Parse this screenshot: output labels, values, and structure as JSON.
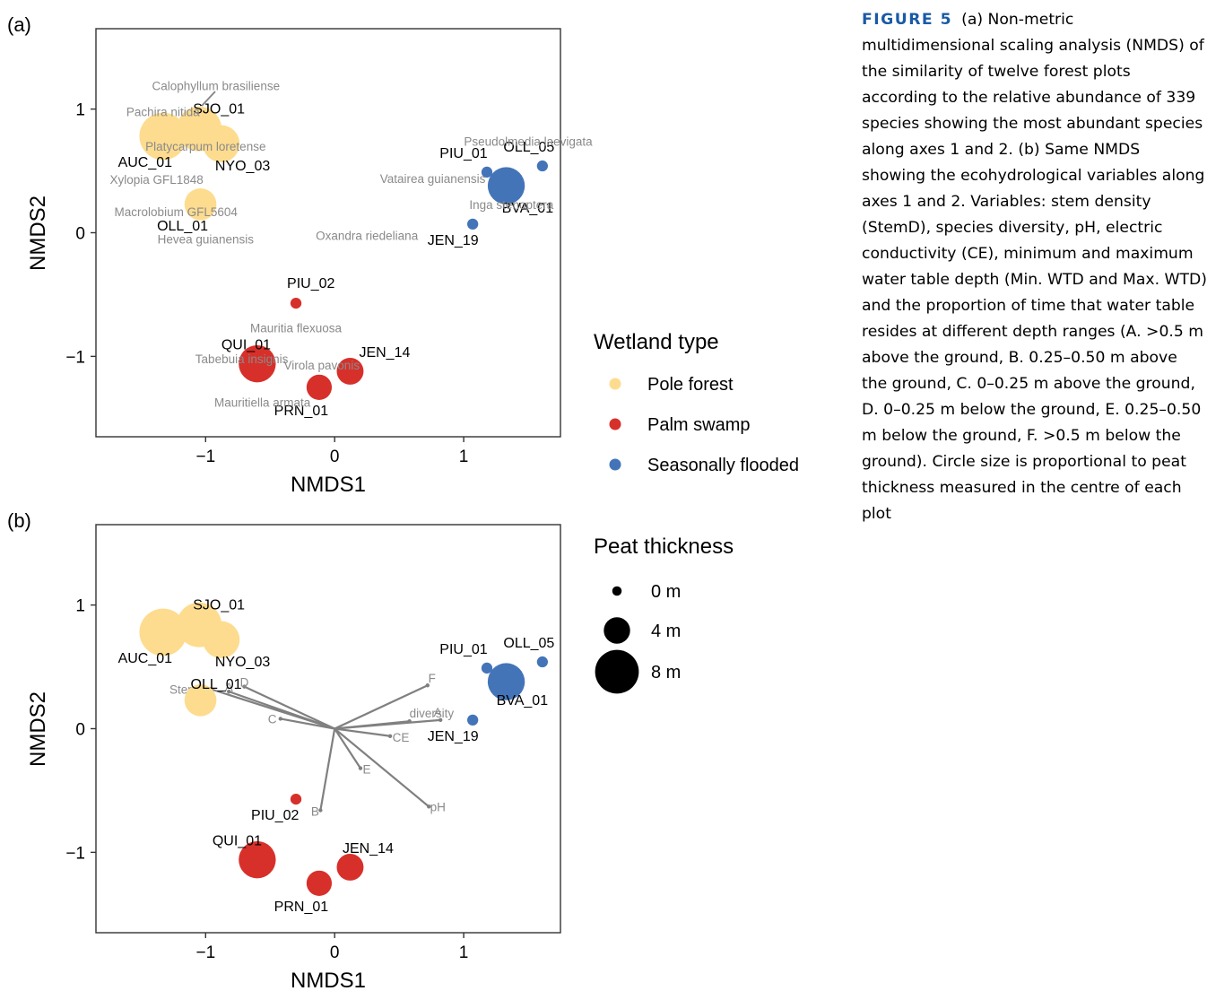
{
  "caption": {
    "figure_label": "FIGURE 5",
    "text": "(a) Non-metric multidimensional scaling analysis (NMDS) of the similarity of twelve forest plots according to the relative abundance of 339 species showing the most abundant species along axes 1 and 2. (b) Same NMDS showing the ecohydrological variables along axes 1 and 2. Variables: stem density (StemD), species diversity, pH, electric conductivity (CE), minimum and maximum water table depth (Min. WTD and Max. WTD) and the proportion of time that water table resides at different depth ranges (A. >0.5 m above the ground, B. 0.25–0.50 m above the ground, C. 0–0.25 m above the ground, D. 0–0.25 m below the ground, E. 0.25–0.50 m below the ground, F. >0.5 m below the ground). Circle size is proportional to peat thickness measured in the centre of each plot"
  },
  "legend": {
    "wetland_title": "Wetland type",
    "wetland_items": [
      {
        "label": "Pole forest",
        "color": "#fddc8f"
      },
      {
        "label": "Palm swamp",
        "color": "#d7302a"
      },
      {
        "label": "Seasonally flooded",
        "color": "#4474b8"
      }
    ],
    "peat_title": "Peat thickness",
    "peat_items": [
      {
        "label": "0 m",
        "value": 0
      },
      {
        "label": "4 m",
        "value": 4
      },
      {
        "label": "8 m",
        "value": 8
      }
    ]
  },
  "chart_data": [
    {
      "type": "scatter",
      "panel": "(a)",
      "xlabel": "NMDS1",
      "ylabel": "NMDS2",
      "xlim": [
        -1.85,
        1.75
      ],
      "ylim": [
        -1.65,
        1.65
      ],
      "xticks": [
        -1,
        0,
        1
      ],
      "yticks": [
        -1,
        0,
        1
      ],
      "grid": false,
      "plots": [
        {
          "label": "AUC_01",
          "x": -1.33,
          "y": 0.78,
          "type": "Pole forest",
          "peat": 7.5
        },
        {
          "label": "SJO_01",
          "x": -1.05,
          "y": 0.84,
          "type": "Pole forest",
          "peat": 7.0
        },
        {
          "label": "NYO_03",
          "x": -0.88,
          "y": 0.72,
          "type": "Pole forest",
          "peat": 5.5
        },
        {
          "label": "OLL_01",
          "x": -1.04,
          "y": 0.23,
          "type": "Pole forest",
          "peat": 4.5
        },
        {
          "label": "PIU_02",
          "x": -0.3,
          "y": -0.57,
          "type": "Palm swamp",
          "peat": 0.4
        },
        {
          "label": "QUI_01",
          "x": -0.6,
          "y": -1.06,
          "type": "Palm swamp",
          "peat": 5.5
        },
        {
          "label": "JEN_14",
          "x": 0.12,
          "y": -1.12,
          "type": "Palm swamp",
          "peat": 3.5
        },
        {
          "label": "PRN_01",
          "x": -0.12,
          "y": -1.25,
          "type": "Palm swamp",
          "peat": 3.2
        },
        {
          "label": "PIU_01",
          "x": 1.18,
          "y": 0.49,
          "type": "Seasonally flooded",
          "peat": 0.4
        },
        {
          "label": "OLL_05",
          "x": 1.61,
          "y": 0.54,
          "type": "Seasonally flooded",
          "peat": 0.4
        },
        {
          "label": "BVA_01",
          "x": 1.33,
          "y": 0.38,
          "type": "Seasonally flooded",
          "peat": 5.5
        },
        {
          "label": "JEN_19",
          "x": 1.07,
          "y": 0.07,
          "type": "Seasonally flooded",
          "peat": 0.4
        }
      ],
      "species": [
        {
          "label": "Calophyllum brasiliense",
          "x": -0.92,
          "y": 1.19
        },
        {
          "label": "Pachira nitida",
          "x": -1.33,
          "y": 0.98
        },
        {
          "label": "Platycarpum loretense",
          "x": -1.0,
          "y": 0.7
        },
        {
          "label": "Xylopia GFL1848",
          "x": -1.38,
          "y": 0.43
        },
        {
          "label": "Macrolobium GFL5604",
          "x": -1.23,
          "y": 0.17
        },
        {
          "label": "Hevea guianensis",
          "x": -1.0,
          "y": -0.05
        },
        {
          "label": "Pseudolmedia laevigata",
          "x": 1.5,
          "y": 0.74
        },
        {
          "label": "Vatairea guianensis",
          "x": 0.76,
          "y": 0.44
        },
        {
          "label": "Inga stenoptera",
          "x": 1.37,
          "y": 0.23
        },
        {
          "label": "Oxandra riedeliana",
          "x": 0.25,
          "y": -0.02
        },
        {
          "label": "Mauritia flexuosa",
          "x": -0.3,
          "y": -0.77
        },
        {
          "label": "Tabebuia insignis",
          "x": -0.72,
          "y": -1.02
        },
        {
          "label": "Virola pavonis",
          "x": -0.1,
          "y": -1.07
        },
        {
          "label": "Mauritiella armata",
          "x": -0.56,
          "y": -1.37
        }
      ]
    },
    {
      "type": "scatter",
      "panel": "(b)",
      "xlabel": "NMDS1",
      "ylabel": "NMDS2",
      "xlim": [
        -1.85,
        1.75
      ],
      "ylim": [
        -1.65,
        1.65
      ],
      "xticks": [
        -1,
        0,
        1
      ],
      "yticks": [
        -1,
        0,
        1
      ],
      "grid": false,
      "plots": [
        {
          "label": "AUC_01",
          "x": -1.33,
          "y": 0.78,
          "type": "Pole forest",
          "peat": 7.5
        },
        {
          "label": "SJO_01",
          "x": -1.05,
          "y": 0.84,
          "type": "Pole forest",
          "peat": 7.0
        },
        {
          "label": "NYO_03",
          "x": -0.88,
          "y": 0.72,
          "type": "Pole forest",
          "peat": 5.5
        },
        {
          "label": "OLL_01",
          "x": -1.04,
          "y": 0.23,
          "type": "Pole forest",
          "peat": 4.5
        },
        {
          "label": "PIU_02",
          "x": -0.3,
          "y": -0.57,
          "type": "Palm swamp",
          "peat": 0.4
        },
        {
          "label": "QUI_01",
          "x": -0.6,
          "y": -1.06,
          "type": "Palm swamp",
          "peat": 5.5
        },
        {
          "label": "JEN_14",
          "x": 0.12,
          "y": -1.12,
          "type": "Palm swamp",
          "peat": 3.5
        },
        {
          "label": "PRN_01",
          "x": -0.12,
          "y": -1.25,
          "type": "Palm swamp",
          "peat": 3.2
        },
        {
          "label": "PIU_01",
          "x": 1.18,
          "y": 0.49,
          "type": "Seasonally flooded",
          "peat": 0.4
        },
        {
          "label": "OLL_05",
          "x": 1.61,
          "y": 0.54,
          "type": "Seasonally flooded",
          "peat": 0.4
        },
        {
          "label": "BVA_01",
          "x": 1.33,
          "y": 0.38,
          "type": "Seasonally flooded",
          "peat": 5.5
        },
        {
          "label": "JEN_19",
          "x": 1.07,
          "y": 0.07,
          "type": "Seasonally flooded",
          "peat": 0.4
        }
      ],
      "vectors": [
        {
          "label": "D",
          "x": -0.7,
          "y": 0.34
        },
        {
          "label": "A",
          "x": -0.82,
          "y": 0.3
        },
        {
          "label": "StemD",
          "x": -0.96,
          "y": 0.32
        },
        {
          "label": "C",
          "x": -0.42,
          "y": 0.08
        },
        {
          "label": "F",
          "x": 0.72,
          "y": 0.35
        },
        {
          "label": "diversity",
          "x": 0.58,
          "y": 0.06
        },
        {
          "label": "A",
          "x": 0.82,
          "y": 0.07
        },
        {
          "label": "CE",
          "x": 0.43,
          "y": -0.06
        },
        {
          "label": "E",
          "x": 0.2,
          "y": -0.32
        },
        {
          "label": "pH",
          "x": 0.73,
          "y": -0.63
        },
        {
          "label": "B",
          "x": -0.11,
          "y": -0.66
        }
      ]
    }
  ]
}
